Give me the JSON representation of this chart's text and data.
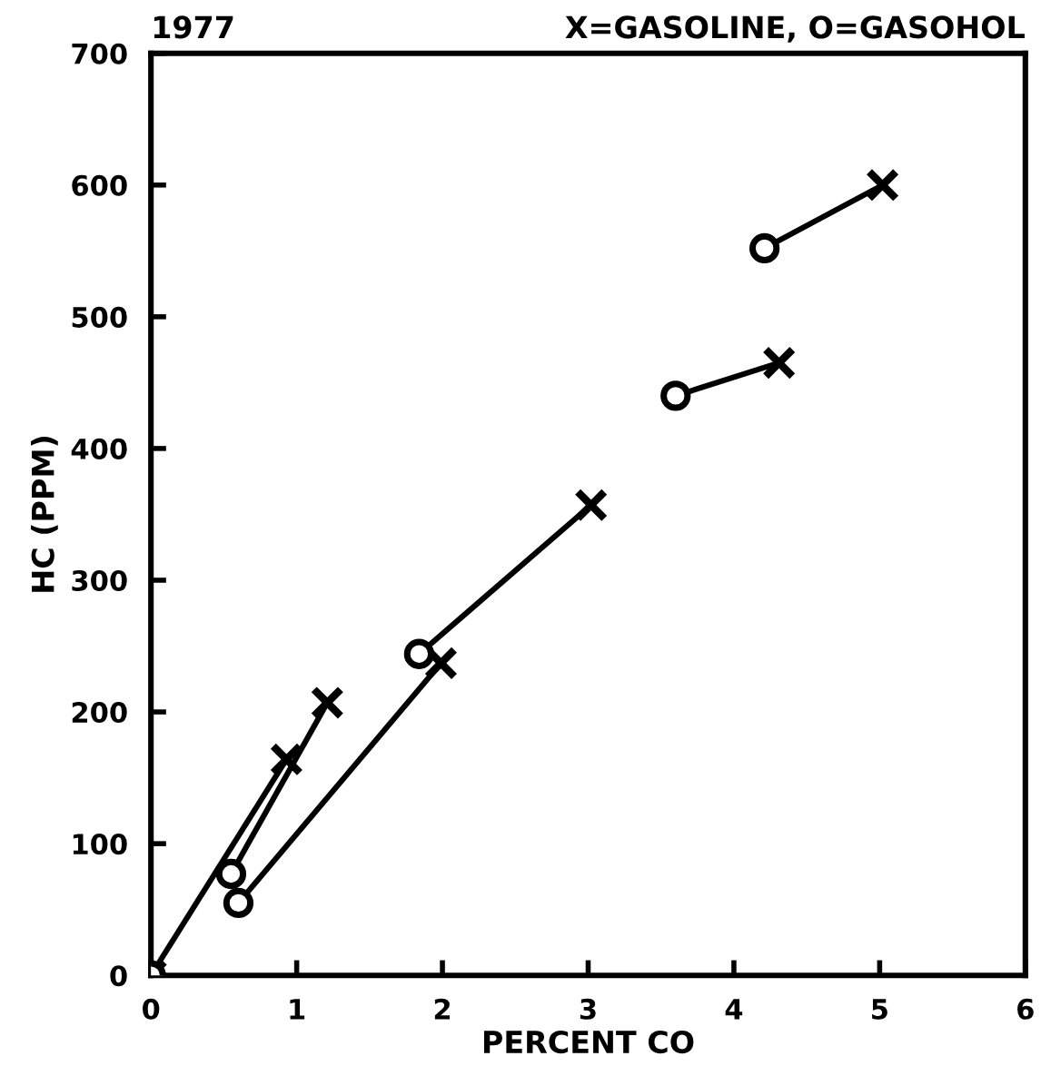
{
  "chart_data": {
    "type": "line",
    "title": "1977",
    "subtitle": "X=GASOLINE, O=GASOHOL",
    "xlabel": "PERCENT CO",
    "ylabel": "HC (PPM)",
    "xlim": [
      0,
      6
    ],
    "xticks": [
      0,
      1,
      2,
      3,
      4,
      5,
      6
    ],
    "ylim": [
      0,
      700
    ],
    "yticks": [
      0,
      100,
      200,
      300,
      400,
      500,
      600,
      700
    ],
    "grid": false,
    "legend": false,
    "series": [
      {
        "color": "#000000",
        "marker": "none",
        "x": [
          0,
          0.93
        ],
        "values": [
          0,
          164
        ]
      },
      {
        "color": "#000000",
        "marker": "none",
        "x": [
          0.55,
          1.21
        ],
        "values": [
          77,
          207
        ]
      },
      {
        "color": "#000000",
        "marker": "none",
        "x": [
          0.6,
          1.99
        ],
        "values": [
          55,
          237
        ]
      },
      {
        "color": "#000000",
        "marker": "none",
        "x": [
          1.84,
          3.02
        ],
        "values": [
          244,
          357
        ]
      },
      {
        "color": "#000000",
        "marker": "none",
        "x": [
          3.6,
          4.31
        ],
        "values": [
          440,
          465
        ]
      },
      {
        "color": "#000000",
        "marker": "none",
        "x": [
          4.21,
          5.02
        ],
        "values": [
          552,
          600
        ]
      },
      {
        "type": "scatter",
        "color": "#000000",
        "marker": "cross",
        "x": [
          0,
          0.93,
          1.21,
          1.99,
          3.02,
          4.31,
          5.02
        ],
        "values": [
          0,
          164,
          207,
          237,
          357,
          465,
          600
        ]
      },
      {
        "type": "scatter",
        "color": "#000000",
        "marker": "circle",
        "x": [
          0,
          0.55,
          0.6,
          1.84,
          3.6,
          4.21
        ],
        "values": [
          0,
          77,
          55,
          244,
          440,
          552
        ]
      }
    ]
  }
}
